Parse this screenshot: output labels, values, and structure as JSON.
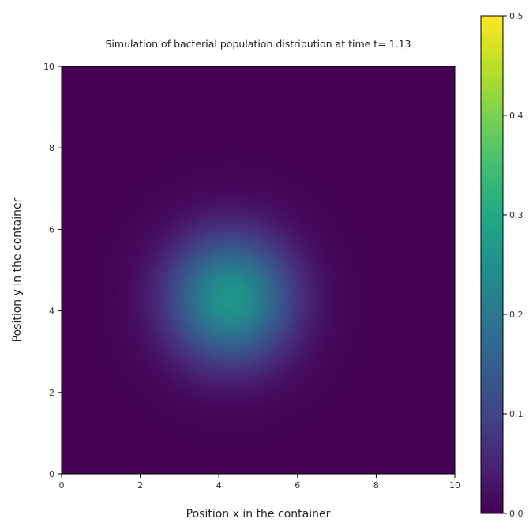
{
  "chart_data": {
    "type": "heatmap",
    "title": "Simulation of bacterial population distribution at time t= 1.13",
    "xlabel": "Position x in the container",
    "ylabel": "Position y in the container",
    "xlim": [
      0,
      10
    ],
    "ylim": [
      0,
      10
    ],
    "x_ticks": [
      "0",
      "2",
      "4",
      "6",
      "8",
      "10"
    ],
    "y_ticks": [
      "0",
      "2",
      "4",
      "6",
      "8",
      "10"
    ],
    "colorbar": {
      "colormap": "viridis",
      "range": [
        0.0,
        0.5
      ],
      "ticks": [
        "0.0",
        "0.1",
        "0.2",
        "0.3",
        "0.4",
        "0.5"
      ]
    },
    "field": {
      "shape": "gaussian",
      "center_x": 4.3,
      "center_y": 4.3,
      "peak_value": 0.26,
      "sigma": 1.1
    },
    "grid": false,
    "legend": "none"
  }
}
